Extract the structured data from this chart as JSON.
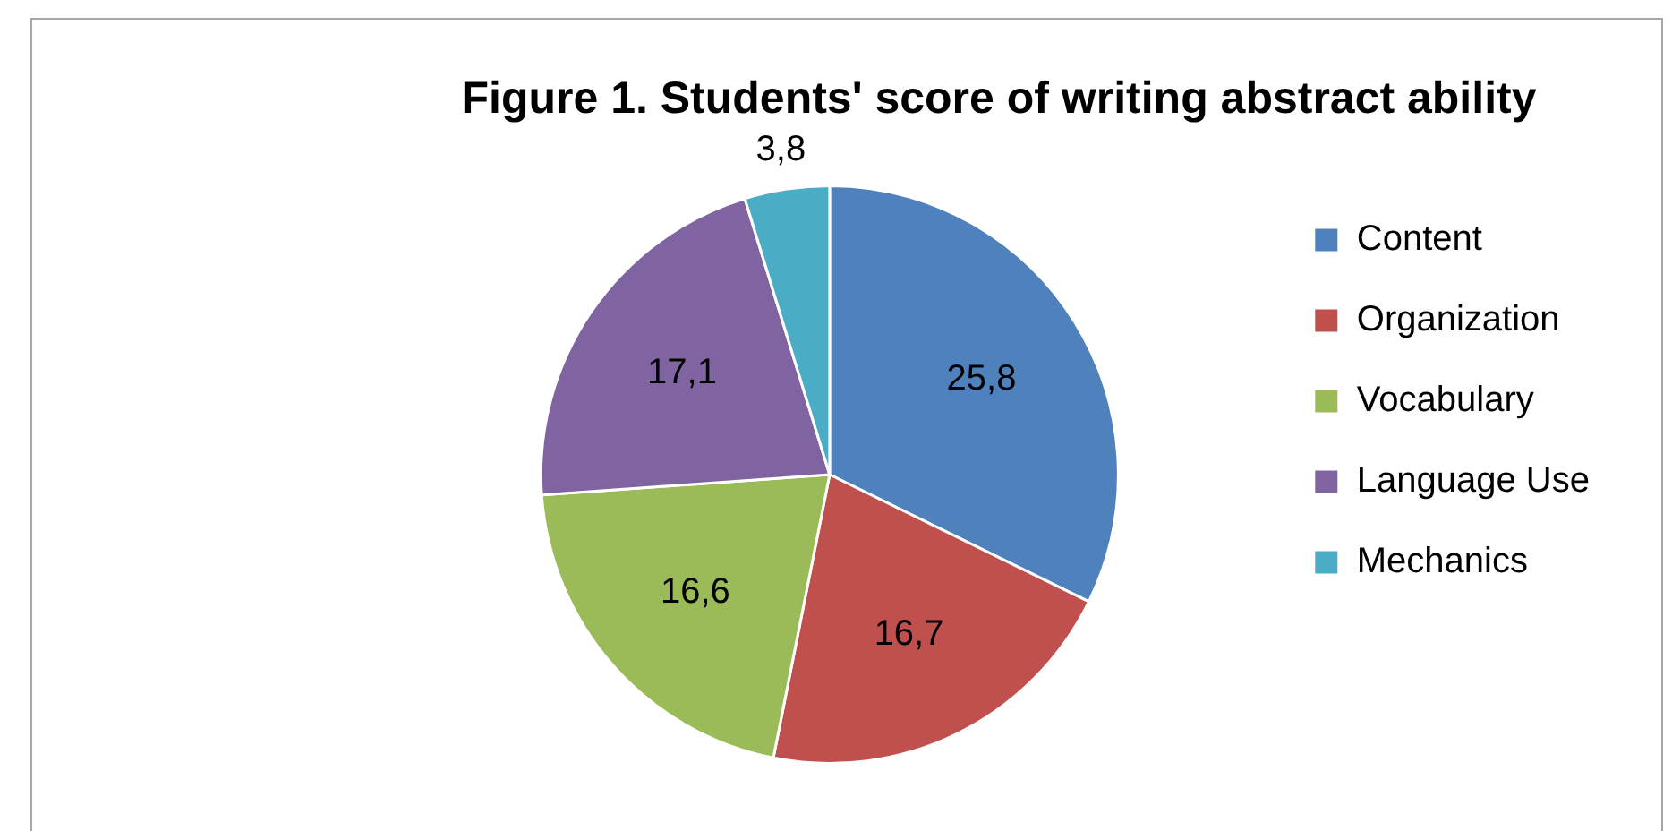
{
  "chart_data": {
    "type": "pie",
    "title": "Figure 1. Students' score of writing abstract ability",
    "categories": [
      "Content",
      "Organization",
      "Vocabulary",
      "Language Use",
      "Mechanics"
    ],
    "values": [
      25.8,
      16.7,
      16.6,
      17.1,
      3.8
    ],
    "colors": [
      "#4f81bd",
      "#c0504d",
      "#9bbb59",
      "#8064a2",
      "#4bacc6"
    ],
    "value_labels": [
      "25,8",
      "16,7",
      "16,6",
      "17,1",
      "3,8"
    ],
    "legend": "right"
  }
}
